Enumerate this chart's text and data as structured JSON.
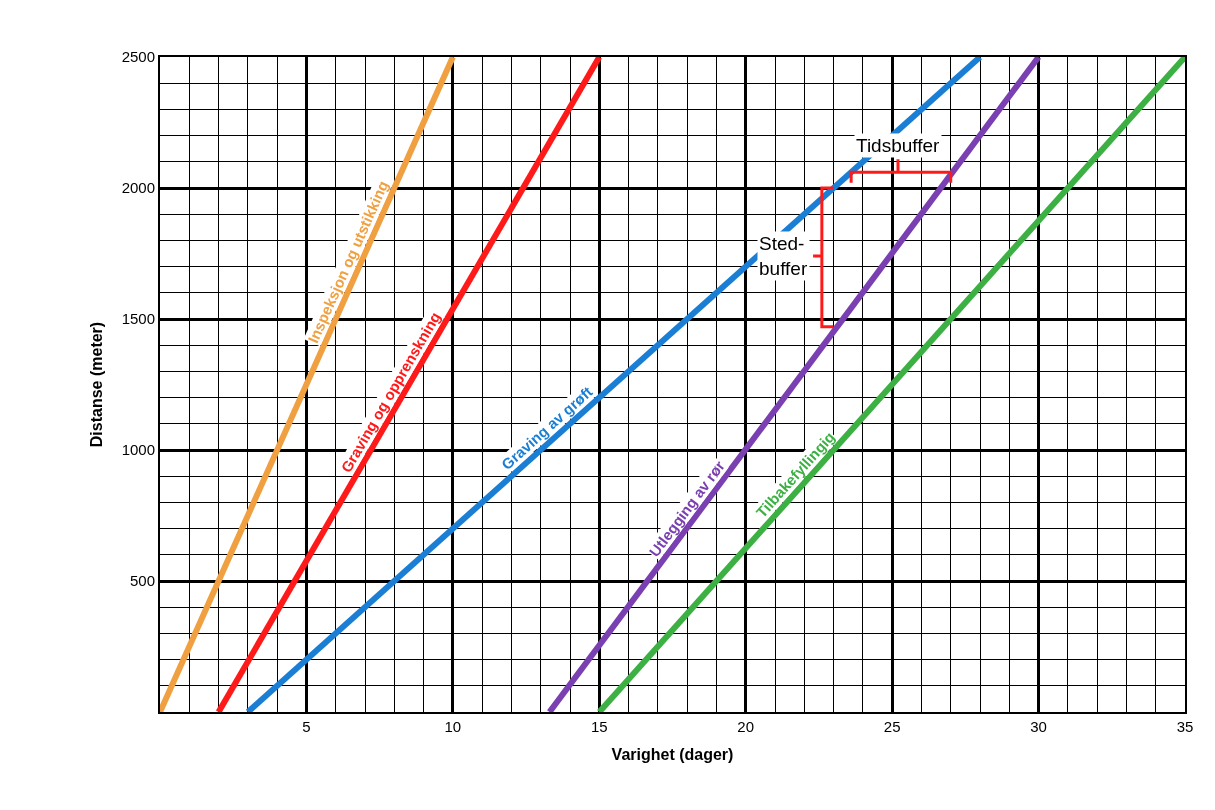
{
  "chart_data": {
    "type": "line",
    "xlabel": "Varighet (dager)",
    "ylabel": "Distanse (meter)",
    "xlim": [
      0,
      35
    ],
    "xticks": [
      5,
      10,
      15,
      20,
      25,
      30,
      35
    ],
    "ylim": [
      0,
      2500
    ],
    "yticks": [
      500,
      1000,
      1500,
      2000,
      2500
    ],
    "grid": true,
    "legend": false,
    "marker": "none",
    "line_style": "solid",
    "series": [
      {
        "name": "Inspeksjon og utstikking",
        "color": "#f0a040",
        "x": [
          0,
          10
        ],
        "values": [
          0,
          2500
        ]
      },
      {
        "name": "Graving og opprenskning",
        "color": "#ff1a1a",
        "x": [
          2,
          15
        ],
        "values": [
          0,
          2500
        ]
      },
      {
        "name": "Graving av grøft",
        "color": "#1a7fd4",
        "x": [
          3,
          28
        ],
        "values": [
          0,
          2500
        ]
      },
      {
        "name": "Utlegging av rør",
        "color": "#7a3fb0",
        "x": [
          13.3,
          30
        ],
        "values": [
          0,
          2500
        ]
      },
      {
        "name": "Tilbakefyllingig",
        "color": "#3cb043",
        "x": [
          15,
          35
        ],
        "values": [
          0,
          2500
        ]
      }
    ],
    "annotations": [
      {
        "text": "Tidsbuffer",
        "x": 23.6,
        "y": 2060
      },
      {
        "text": "Sted-buffer",
        "x": 23.1,
        "y": 1470
      }
    ]
  }
}
